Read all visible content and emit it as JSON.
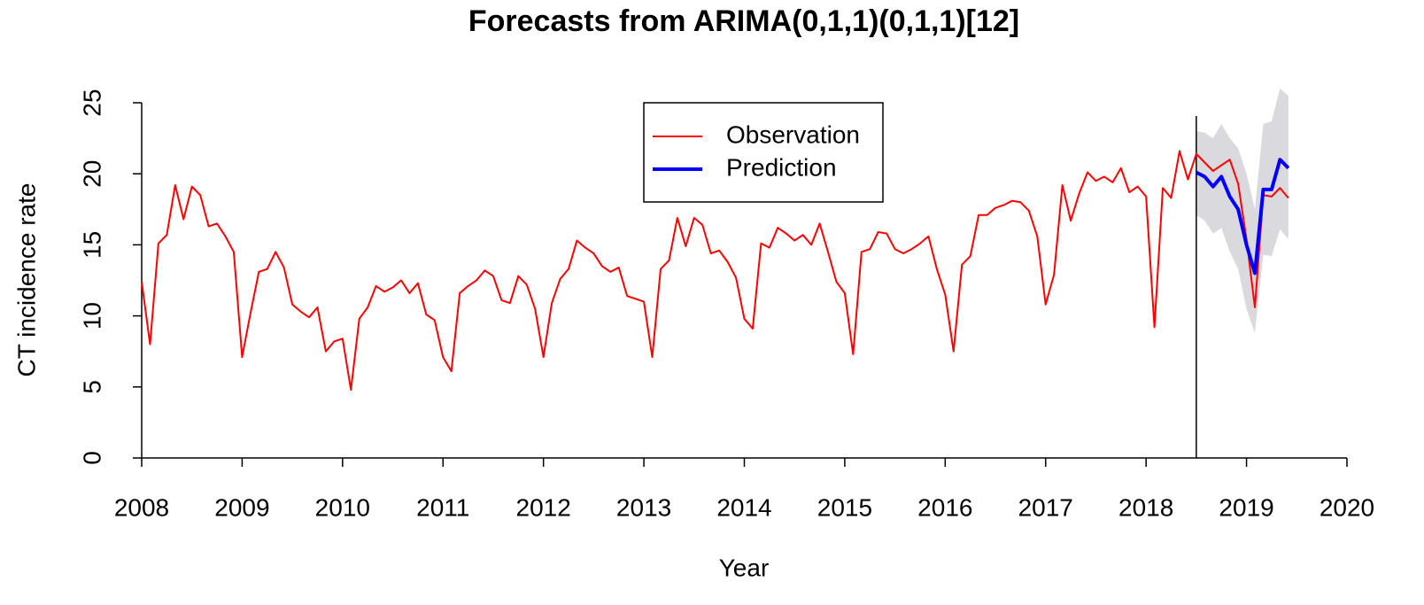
{
  "chart_data": {
    "type": "line",
    "title": "Forecasts from ARIMA(0,1,1)(0,1,1)[12]",
    "x_label": "Year",
    "y_label": "CT incidence rate",
    "xlim": [
      2008,
      2020
    ],
    "ylim": [
      0,
      25
    ],
    "xticks": [
      2008,
      2009,
      2010,
      2011,
      2012,
      2013,
      2014,
      2015,
      2016,
      2017,
      2018,
      2019,
      2020
    ],
    "yticks": [
      0,
      5,
      10,
      15,
      20,
      25
    ],
    "legend": "top",
    "vline": 2018.5,
    "series": [
      {
        "name": "Observation",
        "color": "#ff0000",
        "x": [
          2008,
          2008.0833,
          2008.1667,
          2008.25,
          2008.3333,
          2008.4167,
          2008.5,
          2008.5833,
          2008.6667,
          2008.75,
          2008.8333,
          2008.9167,
          2009,
          2009.0833,
          2009.1667,
          2009.25,
          2009.3333,
          2009.4167,
          2009.5,
          2009.5833,
          2009.6667,
          2009.75,
          2009.8333,
          2009.9167,
          2010,
          2010.0833,
          2010.1667,
          2010.25,
          2010.3333,
          2010.4167,
          2010.5,
          2010.5833,
          2010.6667,
          2010.75,
          2010.8333,
          2010.9167,
          2011,
          2011.0833,
          2011.1667,
          2011.25,
          2011.3333,
          2011.4167,
          2011.5,
          2011.5833,
          2011.6667,
          2011.75,
          2011.8333,
          2011.9167,
          2012,
          2012.0833,
          2012.1667,
          2012.25,
          2012.3333,
          2012.4167,
          2012.5,
          2012.5833,
          2012.6667,
          2012.75,
          2012.8333,
          2012.9167,
          2013,
          2013.0833,
          2013.1667,
          2013.25,
          2013.3333,
          2013.4167,
          2013.5,
          2013.5833,
          2013.6667,
          2013.75,
          2013.8333,
          2013.9167,
          2014,
          2014.0833,
          2014.1667,
          2014.25,
          2014.3333,
          2014.4167,
          2014.5,
          2014.5833,
          2014.6667,
          2014.75,
          2014.8333,
          2014.9167,
          2015,
          2015.0833,
          2015.1667,
          2015.25,
          2015.3333,
          2015.4167,
          2015.5,
          2015.5833,
          2015.6667,
          2015.75,
          2015.8333,
          2015.9167,
          2016,
          2016.0833,
          2016.1667,
          2016.25,
          2016.3333,
          2016.4167,
          2016.5,
          2016.5833,
          2016.6667,
          2016.75,
          2016.8333,
          2016.9167,
          2017,
          2017.0833,
          2017.1667,
          2017.25,
          2017.3333,
          2017.4167,
          2017.5,
          2017.5833,
          2017.6667,
          2017.75,
          2017.8333,
          2017.9167,
          2018,
          2018.0833,
          2018.1667,
          2018.25,
          2018.3333,
          2018.4167,
          2018.5,
          2018.5833,
          2018.6667,
          2018.75,
          2018.8333,
          2018.9167,
          2019,
          2019.0833,
          2019.1667,
          2019.25,
          2019.3333,
          2019.4167
        ],
        "values": [
          12.4,
          8.0,
          15.1,
          15.7,
          19.2,
          16.8,
          19.1,
          18.5,
          16.3,
          16.5,
          15.6,
          14.5,
          7.1,
          10.2,
          13.1,
          13.3,
          14.5,
          13.4,
          10.8,
          10.3,
          9.9,
          10.6,
          7.5,
          8.2,
          8.4,
          4.8,
          9.8,
          10.6,
          12.1,
          11.7,
          12.0,
          12.5,
          11.6,
          12.3,
          10.1,
          9.7,
          7.1,
          6.1,
          11.6,
          12.1,
          12.5,
          13.2,
          12.8,
          11.1,
          10.9,
          12.8,
          12.2,
          10.5,
          7.1,
          10.9,
          12.6,
          13.3,
          15.3,
          14.8,
          14.4,
          13.5,
          13.1,
          13.4,
          11.4,
          11.2,
          11.0,
          7.1,
          13.3,
          13.9,
          16.9,
          14.9,
          16.9,
          16.4,
          14.4,
          14.6,
          13.8,
          12.7,
          9.8,
          9.1,
          15.1,
          14.8,
          16.2,
          15.8,
          15.3,
          15.7,
          15.0,
          16.5,
          14.5,
          12.4,
          11.6,
          7.3,
          14.5,
          14.7,
          15.9,
          15.8,
          14.7,
          14.4,
          14.7,
          15.1,
          15.6,
          13.3,
          11.5,
          7.5,
          13.6,
          14.2,
          17.1,
          17.1,
          17.6,
          17.8,
          18.1,
          18.0,
          17.4,
          15.6,
          10.8,
          12.9,
          19.2,
          16.7,
          18.6,
          20.1,
          19.5,
          19.8,
          19.4,
          20.4,
          18.7,
          19.1,
          18.4,
          9.2,
          19.0,
          18.3,
          21.6,
          19.6,
          21.4,
          20.8,
          20.2,
          20.6,
          21.0,
          19.3,
          15.4,
          10.6,
          18.5,
          18.4,
          19.0,
          18.3
        ]
      },
      {
        "name": "Prediction",
        "color": "#0000ff",
        "x": [
          2018.5,
          2018.5833,
          2018.6667,
          2018.75,
          2018.8333,
          2018.9167,
          2019,
          2019.0833,
          2019.1667,
          2019.25,
          2019.3333,
          2019.4167
        ],
        "values": [
          20.1,
          19.8,
          19.1,
          19.8,
          18.4,
          17.5,
          15.0,
          13.0,
          18.9,
          18.9,
          21.0,
          20.4
        ]
      }
    ],
    "band": {
      "color": "#d9d9de",
      "x": [
        2018.5,
        2018.5833,
        2018.6667,
        2018.75,
        2018.8333,
        2018.9167,
        2019,
        2019.0833,
        2019.1667,
        2019.25,
        2019.3333,
        2019.4167
      ],
      "lower": [
        17.1,
        16.7,
        15.8,
        16.2,
        14.5,
        13.3,
        10.5,
        8.8,
        14.3,
        14.2,
        16.1,
        15.4
      ],
      "upper": [
        23.0,
        22.9,
        22.5,
        23.5,
        22.5,
        21.8,
        20.0,
        17.5,
        23.5,
        23.7,
        26.0,
        25.5
      ]
    }
  }
}
